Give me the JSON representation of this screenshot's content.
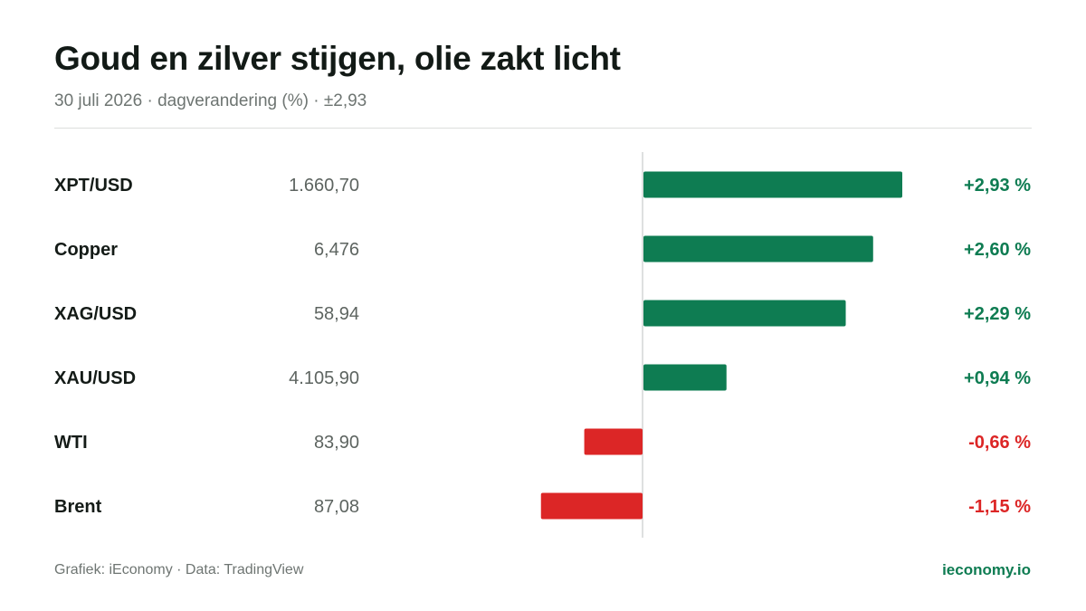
{
  "header": {
    "title": "Goud en zilver stijgen, olie zakt licht",
    "subtitle": "30 juli 2026 · dagverandering (%) · ±2,93"
  },
  "footer": {
    "source": "Grafiek: iEconomy · Data: TradingView",
    "brand": "ieconomy.io"
  },
  "colors": {
    "positive": "#0e7c52",
    "negative": "#dc2626",
    "axis": "#d4d6d5",
    "label": "#141b17",
    "price": "#5d6460"
  },
  "chart_data": {
    "type": "bar",
    "orientation": "horizontal",
    "unit": "%",
    "xlim": [
      -2.93,
      2.93
    ],
    "rows": [
      {
        "name": "XPT/USD",
        "price": "1.660,70",
        "change": 2.93,
        "label": "+2,93 %"
      },
      {
        "name": "Copper",
        "price": "6,476",
        "change": 2.6,
        "label": "+2,60 %"
      },
      {
        "name": "XAG/USD",
        "price": "58,94",
        "change": 2.29,
        "label": "+2,29 %"
      },
      {
        "name": "XAU/USD",
        "price": "4.105,90",
        "change": 0.94,
        "label": "+0,94 %"
      },
      {
        "name": "WTI",
        "price": "83,90",
        "change": -0.66,
        "label": "-0,66 %"
      },
      {
        "name": "Brent",
        "price": "87,08",
        "change": -1.15,
        "label": "-1,15 %"
      }
    ]
  }
}
